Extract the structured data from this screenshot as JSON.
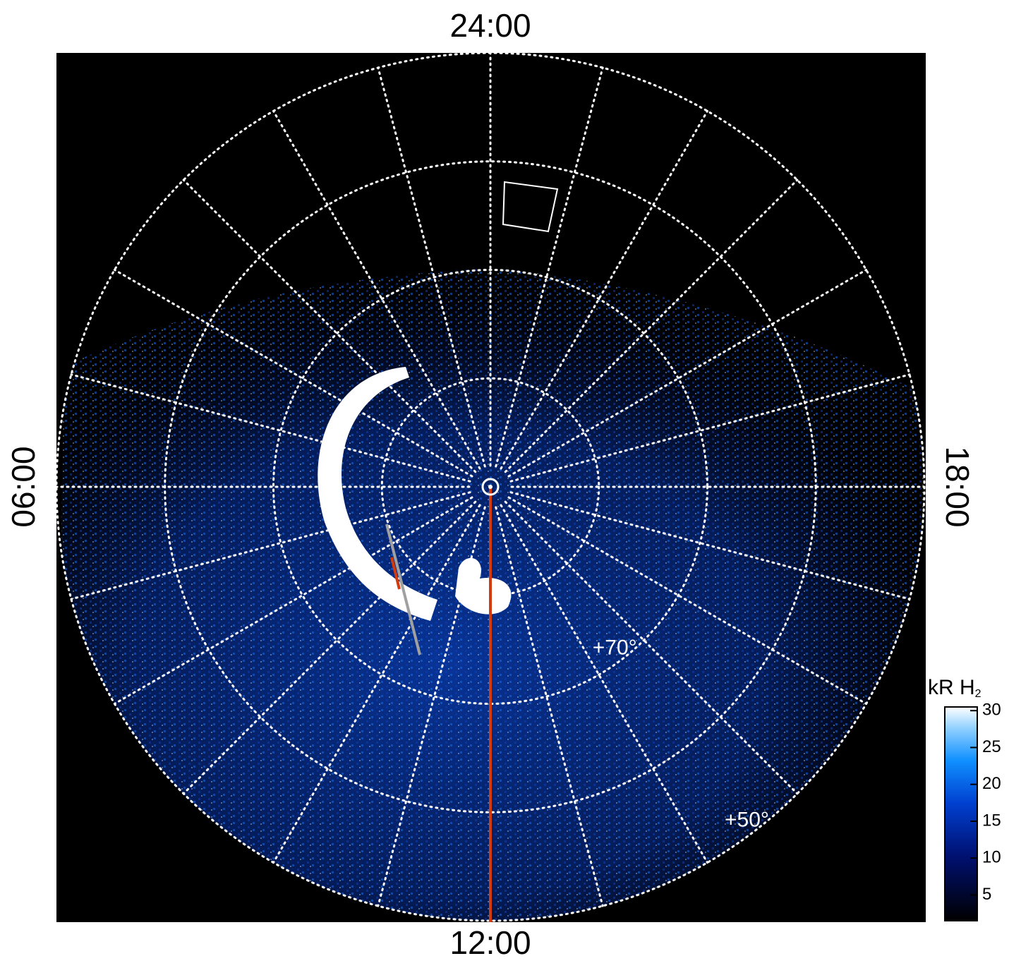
{
  "chart_data": {
    "type": "polar-image",
    "rlim": [
      90,
      50
    ],
    "rticks": [
      {
        "value": 80,
        "label": null
      },
      {
        "value": 70,
        "label": "+70°"
      },
      {
        "value": 60,
        "label": null
      },
      {
        "value": 50,
        "label": "+50°"
      }
    ],
    "thetaticks": [
      {
        "value": 0,
        "label": "24:00"
      },
      {
        "value": 6,
        "label": "06:00"
      },
      {
        "value": 12,
        "label": "12:00"
      },
      {
        "value": 18,
        "label": "18:00"
      }
    ],
    "meridian_step": 1,
    "grid": true,
    "colorbar": {
      "title": "kR H",
      "title_subscript": "2",
      "clim": [
        1.5,
        30.5
      ],
      "ticks": [
        5,
        10,
        15,
        20,
        25,
        30
      ]
    }
  }
}
